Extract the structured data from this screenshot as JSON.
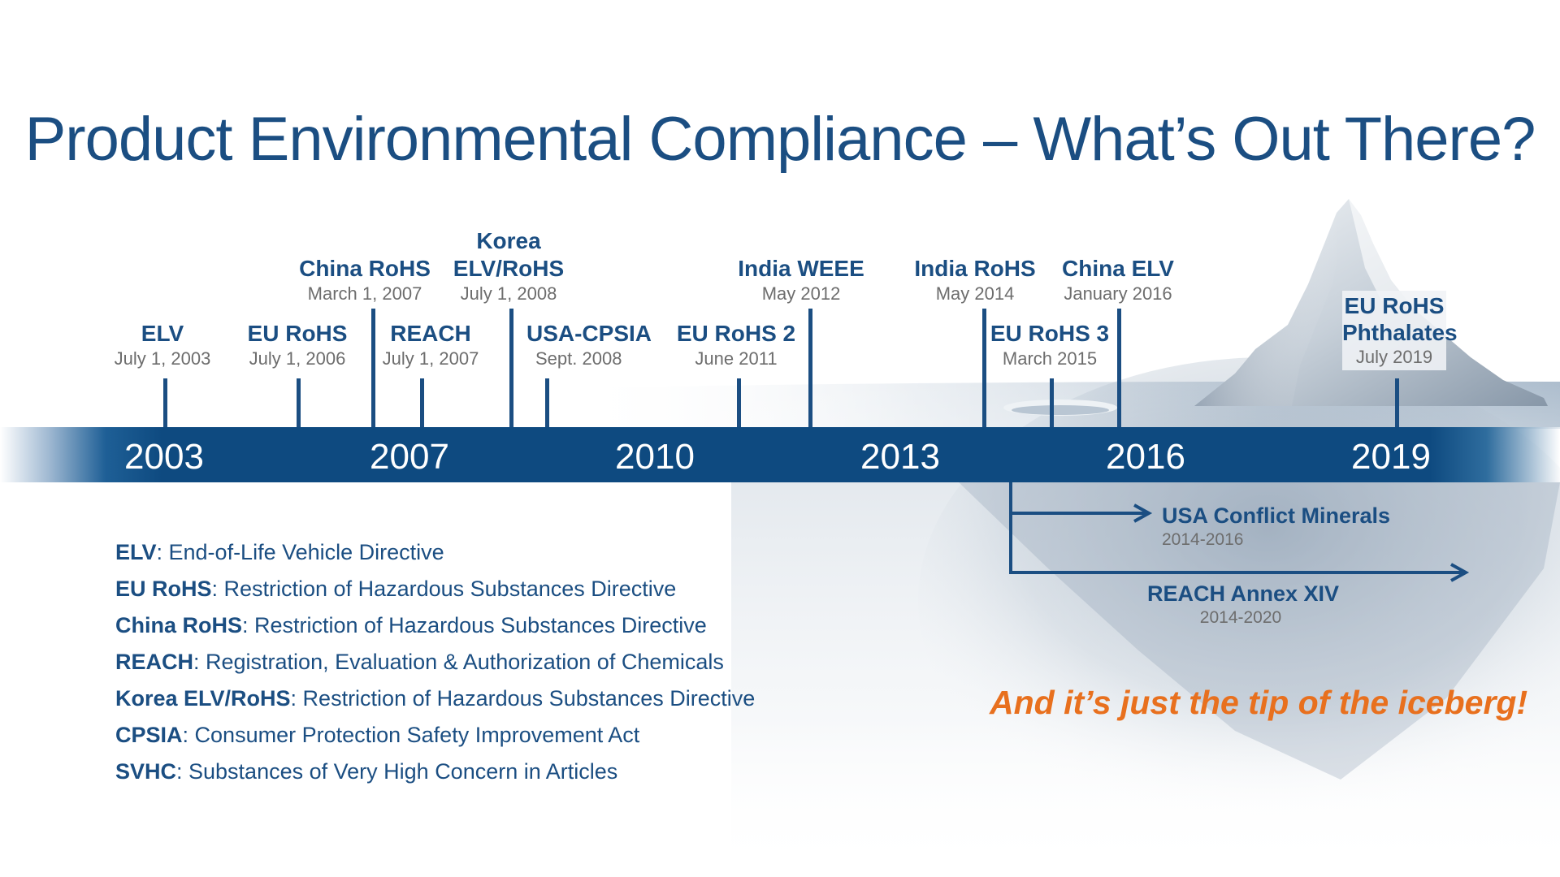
{
  "title": "Product Environmental Compliance – What’s Out There?",
  "timeline": {
    "years": [
      "2003",
      "2007",
      "2010",
      "2013",
      "2016",
      "2019"
    ],
    "events": [
      {
        "name": "ELV",
        "date": "July 1, 2003"
      },
      {
        "name": "EU RoHS",
        "date": "July 1, 2006"
      },
      {
        "name": "China RoHS",
        "date": "March 1, 2007"
      },
      {
        "name": "REACH",
        "date": "July 1, 2007"
      },
      {
        "name": "Korea ELV/RoHS",
        "date": "July 1, 2008"
      },
      {
        "name": "USA-CPSIA",
        "date": "Sept. 2008"
      },
      {
        "name": "EU RoHS 2",
        "date": "June 2011"
      },
      {
        "name": "India WEEE",
        "date": "May 2012"
      },
      {
        "name": "India RoHS",
        "date": "May 2014"
      },
      {
        "name": "EU RoHS 3",
        "date": "March 2015"
      },
      {
        "name": "China ELV",
        "date": "January 2016"
      },
      {
        "name": "EU RoHS Phthalates",
        "date": "July 2019"
      }
    ],
    "ranges": [
      {
        "name": "USA Conflict Minerals",
        "date": "2014-2016"
      },
      {
        "name": "REACH Annex XIV",
        "date": "2014-2020"
      }
    ]
  },
  "legend": [
    {
      "term": "ELV",
      "definition": ": End-of-Life Vehicle Directive"
    },
    {
      "term": "EU RoHS",
      "definition": ": Restriction of Hazardous Substances Directive"
    },
    {
      "term": "China RoHS",
      "definition": ": Restriction of Hazardous Substances Directive"
    },
    {
      "term": "REACH",
      "definition": ": Registration, Evaluation & Authorization of Chemicals"
    },
    {
      "term": "Korea ELV/RoHS",
      "definition": ": Restriction of Hazardous Substances Directive"
    },
    {
      "term": "CPSIA",
      "definition": ": Consumer Protection Safety Improvement Act"
    },
    {
      "term": "SVHC",
      "definition": ": Substances of Very High Concern in Articles"
    }
  ],
  "tagline": "And it’s just the tip of the iceberg!",
  "colors": {
    "title": "#1b4e82",
    "timeline_bar": "#0e4a80",
    "label": "#1b4e82",
    "date": "#6d6d6d",
    "tagline": "#e8701e"
  }
}
